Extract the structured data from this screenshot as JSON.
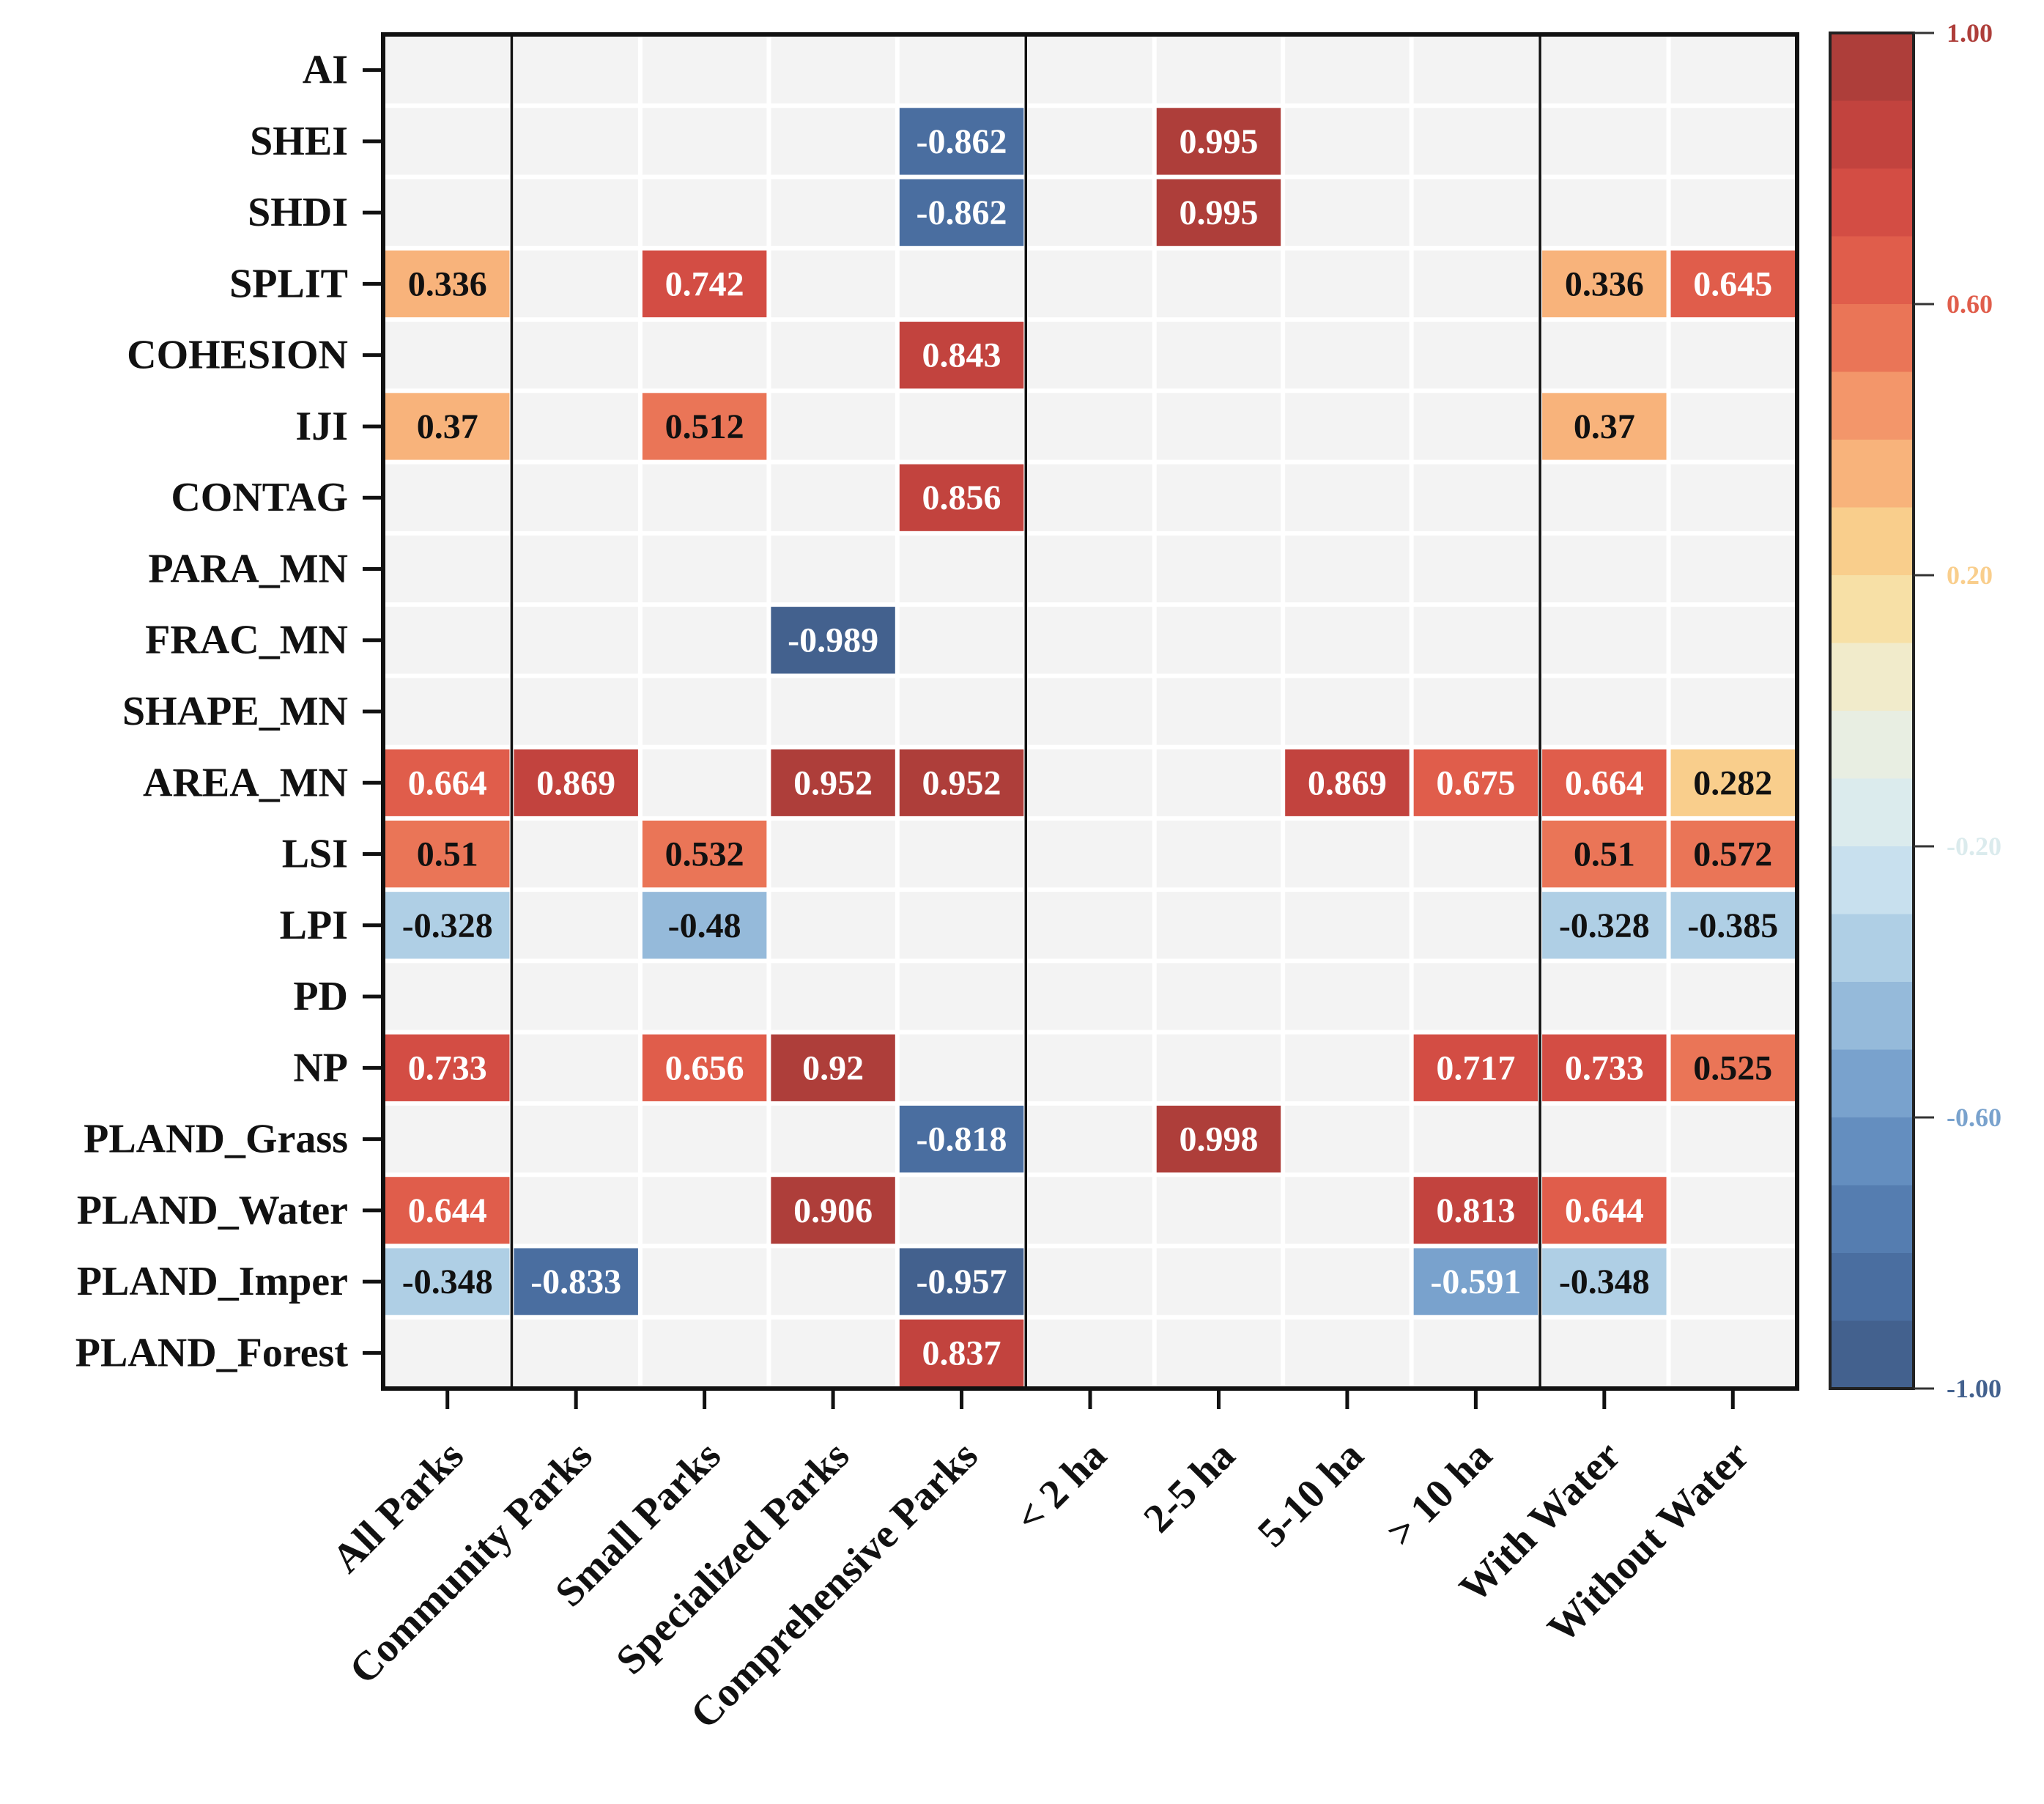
{
  "chart_data": {
    "type": "heatmap",
    "title": "",
    "xlabel": "",
    "ylabel": "",
    "rows": [
      "AI",
      "SHEI",
      "SHDI",
      "SPLIT",
      "COHESION",
      "IJI",
      "CONTAG",
      "PARA_MN",
      "FRAC_MN",
      "SHAPE_MN",
      "AREA_MN",
      "LSI",
      "LPI",
      "PD",
      "NP",
      "PLAND_Grass",
      "PLAND_Water",
      "PLAND_Imper",
      "PLAND_Forest"
    ],
    "columns": [
      "All Parks",
      "Community Parks",
      "Small Parks",
      "Specialized Parks",
      "Comprehensive Parks",
      "< 2 ha",
      "2-5 ha",
      "5-10 ha",
      "> 10 ha",
      "With Water",
      "Without Water"
    ],
    "group_dividers_after_column_index": [
      0,
      4,
      8
    ],
    "values": [
      [
        null,
        null,
        null,
        null,
        null,
        null,
        null,
        null,
        null,
        null,
        null
      ],
      [
        null,
        null,
        null,
        null,
        -0.862,
        null,
        0.995,
        null,
        null,
        null,
        null
      ],
      [
        null,
        null,
        null,
        null,
        -0.862,
        null,
        0.995,
        null,
        null,
        null,
        null
      ],
      [
        0.336,
        null,
        0.742,
        null,
        null,
        null,
        null,
        null,
        null,
        0.336,
        0.645
      ],
      [
        null,
        null,
        null,
        null,
        0.843,
        null,
        null,
        null,
        null,
        null,
        null
      ],
      [
        0.37,
        null,
        0.512,
        null,
        null,
        null,
        null,
        null,
        null,
        0.37,
        null
      ],
      [
        null,
        null,
        null,
        null,
        0.856,
        null,
        null,
        null,
        null,
        null,
        null
      ],
      [
        null,
        null,
        null,
        null,
        null,
        null,
        null,
        null,
        null,
        null,
        null
      ],
      [
        null,
        null,
        null,
        -0.989,
        null,
        null,
        null,
        null,
        null,
        null,
        null
      ],
      [
        null,
        null,
        null,
        null,
        null,
        null,
        null,
        null,
        null,
        null,
        null
      ],
      [
        0.664,
        0.869,
        null,
        0.952,
        0.952,
        null,
        null,
        0.869,
        0.675,
        0.664,
        0.282
      ],
      [
        0.51,
        null,
        0.532,
        null,
        null,
        null,
        null,
        null,
        null,
        0.51,
        0.572
      ],
      [
        -0.328,
        null,
        -0.48,
        null,
        null,
        null,
        null,
        null,
        null,
        -0.328,
        -0.385
      ],
      [
        null,
        null,
        null,
        null,
        null,
        null,
        null,
        null,
        null,
        null,
        null
      ],
      [
        0.733,
        null,
        0.656,
        0.92,
        null,
        null,
        null,
        null,
        0.717,
        0.733,
        0.525
      ],
      [
        null,
        null,
        null,
        null,
        -0.818,
        null,
        0.998,
        null,
        null,
        null,
        null
      ],
      [
        0.644,
        null,
        null,
        0.906,
        null,
        null,
        null,
        null,
        0.813,
        0.644,
        null
      ],
      [
        -0.348,
        -0.833,
        null,
        null,
        -0.957,
        null,
        null,
        null,
        -0.591,
        -0.348,
        null
      ],
      [
        null,
        null,
        null,
        null,
        0.837,
        null,
        null,
        null,
        null,
        null,
        null
      ]
    ],
    "colorbar": {
      "range": [
        -1.0,
        1.0
      ],
      "ticks": [
        1.0,
        0.6,
        0.2,
        -0.2,
        -0.6,
        -1.0
      ],
      "tick_labels": [
        "1.00",
        "0.60",
        "0.20",
        "-0.20",
        "-0.60",
        "-1.00"
      ],
      "steps": 20,
      "colormap": "RdYlBu_r"
    },
    "empty_cell_color": "#f3f3f3",
    "colors": {
      "stops": [
        {
          "v": -1.0,
          "c": "#3f5a85"
        },
        {
          "v": -0.8,
          "c": "#4d74a9"
        },
        {
          "v": -0.6,
          "c": "#6b96c6"
        },
        {
          "v": -0.4,
          "c": "#a3c6e0"
        },
        {
          "v": -0.2,
          "c": "#d4e9f2"
        },
        {
          "v": 0.0,
          "c": "#eef0dd"
        },
        {
          "v": 0.2,
          "c": "#fadb94"
        },
        {
          "v": 0.4,
          "c": "#f7a673"
        },
        {
          "v": 0.6,
          "c": "#e6654e"
        },
        {
          "v": 0.8,
          "c": "#cc4540"
        },
        {
          "v": 1.0,
          "c": "#a43b38"
        }
      ]
    },
    "legend": "right"
  }
}
